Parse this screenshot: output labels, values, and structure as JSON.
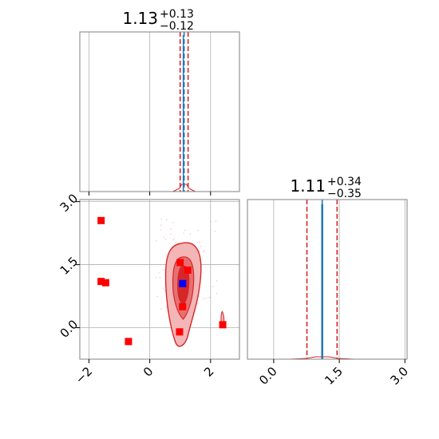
{
  "chart_data": [
    {
      "panel": "top-left",
      "type": "histogram",
      "title": {
        "value": "1.13",
        "plus": "+0.13",
        "minus": "−0.12"
      },
      "xlim": [
        -2.3,
        2.95
      ],
      "xticks": [
        -2,
        0,
        2
      ],
      "xtick_labels_shown": false,
      "grid": true,
      "lines": [
        {
          "x": 1.0,
          "color": "#d62728",
          "style": "dashed"
        },
        {
          "x": 1.13,
          "color": "#1f77b4",
          "style": "dashed"
        },
        {
          "x": 1.26,
          "color": "#d62728",
          "style": "dashed"
        }
      ]
    },
    {
      "panel": "bottom-right",
      "type": "histogram",
      "title": {
        "value": "1.11",
        "plus": "+0.34",
        "minus": "−0.35"
      },
      "xlim": [
        -0.6,
        3.05
      ],
      "xticks": [
        0.0,
        1.5,
        3.0
      ],
      "xtick_labels": [
        "0.0",
        "1.5",
        "3.0"
      ],
      "grid": true,
      "lines": [
        {
          "x": 0.76,
          "color": "#d62728",
          "style": "dashed"
        },
        {
          "x": 1.11,
          "color": "#1f77b4",
          "style": "dashed"
        },
        {
          "x": 1.45,
          "color": "#d62728",
          "style": "dashed"
        }
      ]
    },
    {
      "panel": "bottom-left",
      "type": "scatter",
      "xlim": [
        -2.3,
        2.95
      ],
      "ylim": [
        -0.75,
        3.05
      ],
      "xticks": [
        -2,
        0,
        2
      ],
      "xtick_labels": [
        "−2",
        "0",
        "2"
      ],
      "yticks": [
        0.0,
        1.5,
        3.0
      ],
      "ytick_labels": [
        "0.0",
        "1.5",
        "3.0"
      ],
      "grid": true,
      "series": [
        {
          "marker": "square",
          "color": "#ff0000",
          "points": [
            [
              -1.6,
              2.55
            ],
            [
              -1.6,
              1.1
            ],
            [
              -1.45,
              1.07
            ],
            [
              -0.7,
              -0.33
            ],
            [
              1.0,
              1.55
            ],
            [
              1.25,
              1.37
            ],
            [
              1.08,
              0.5
            ],
            [
              0.98,
              -0.1
            ],
            [
              2.4,
              0.07
            ]
          ]
        },
        {
          "marker": "square",
          "color": "#0000ff",
          "points": [
            [
              1.08,
              1.05
            ]
          ]
        }
      ],
      "contours": {
        "color": "#d62728",
        "levels": 3,
        "center": [
          1.1,
          1.1
        ]
      }
    }
  ]
}
